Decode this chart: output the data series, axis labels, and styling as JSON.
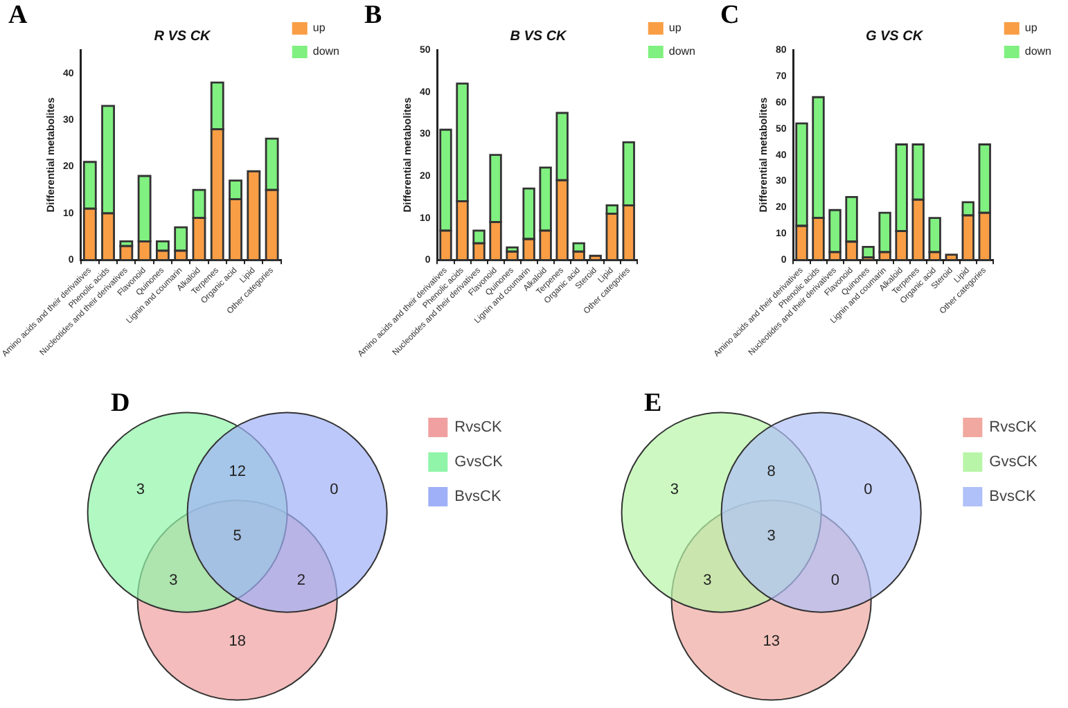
{
  "chart_data": [
    {
      "type": "bar",
      "title": "R VS CK",
      "ylabel": "Differential metabolites",
      "annotations": [
        "A"
      ],
      "stacked": true,
      "legend": "top right",
      "categories": [
        "Amino acids and their derivatives",
        "Phenolic acids",
        "Nucleotides and their derivatives",
        "Flavonoid",
        "Quinones",
        "Lignin and coumarin",
        "Alkaloid",
        "Terpenes",
        "Organic acid",
        "Lipid",
        "Other categories"
      ],
      "series": [
        {
          "name": "up",
          "color": "#fa9e45",
          "values": [
            11,
            10,
            3,
            4,
            2,
            2,
            9,
            28,
            13,
            19,
            15
          ]
        },
        {
          "name": "down",
          "color": "#80f080",
          "values": [
            10,
            23,
            1,
            14,
            2,
            5,
            6,
            10,
            4,
            0,
            11
          ]
        }
      ],
      "ylim": [
        0,
        45
      ],
      "yticks": [
        0,
        10,
        20,
        30,
        40
      ]
    },
    {
      "type": "bar",
      "title": "B VS CK",
      "ylabel": "Differential metabolites",
      "annotations": [
        "B"
      ],
      "stacked": true,
      "legend": "top right",
      "categories": [
        "Amino acids and their derivatives",
        "Phenolic acids",
        "Nucleotides and their derivatives",
        "Flavonoid",
        "Quinones",
        "Lignin and coumarin",
        "Alkaloid",
        "Terpenes",
        "Organic acid",
        "Steroid",
        "Lipid",
        "Other categories"
      ],
      "series": [
        {
          "name": "up",
          "color": "#fa9e45",
          "values": [
            7,
            14,
            4,
            9,
            2,
            5,
            7,
            19,
            2,
            1,
            11,
            13
          ]
        },
        {
          "name": "down",
          "color": "#80f080",
          "values": [
            24,
            28,
            3,
            16,
            1,
            12,
            15,
            16,
            2,
            0,
            2,
            15
          ]
        }
      ],
      "ylim": [
        0,
        50
      ],
      "yticks": [
        0,
        10,
        20,
        30,
        40,
        50
      ]
    },
    {
      "type": "bar",
      "title": "G VS CK",
      "ylabel": "Differential metabolites",
      "annotations": [
        "C"
      ],
      "stacked": true,
      "legend": "top right",
      "categories": [
        "Amino acids and their derivatives",
        "Phenolic acids",
        "Nucleotides and their derivatives",
        "Flavonoid",
        "Quinones",
        "Lignin and coumarin",
        "Alkaloid",
        "Terpenes",
        "Organic acid",
        "Steroid",
        "Lipid",
        "Other categories"
      ],
      "series": [
        {
          "name": "up",
          "color": "#fa9e45",
          "values": [
            13,
            16,
            3,
            7,
            1,
            3,
            11,
            23,
            3,
            2,
            17,
            18
          ]
        },
        {
          "name": "down",
          "color": "#80f080",
          "values": [
            39,
            46,
            16,
            17,
            4,
            15,
            33,
            21,
            13,
            0,
            5,
            26
          ]
        }
      ],
      "ylim": [
        0,
        80
      ],
      "yticks": [
        0,
        10,
        20,
        30,
        40,
        50,
        60,
        70,
        80
      ]
    },
    {
      "type": "other",
      "annotations": [
        "D",
        "3",
        "12",
        "0",
        "5",
        "3",
        "2",
        "18"
      ],
      "legend": "right",
      "series": [
        {
          "name": "RvsCK",
          "color": "#f0a0a0"
        },
        {
          "name": "GvsCK",
          "color": "#90f5a8"
        },
        {
          "name": "BvsCK",
          "color": "#a0b0f8"
        }
      ]
    },
    {
      "type": "other",
      "annotations": [
        "E",
        "3",
        "8",
        "0",
        "3",
        "3",
        "0",
        "13"
      ],
      "legend": "right",
      "series": [
        {
          "name": "RvsCK",
          "color": "#f0a8a0"
        },
        {
          "name": "GvsCK",
          "color": "#b8f5a8"
        },
        {
          "name": "BvsCK",
          "color": "#b0c0f8"
        }
      ]
    }
  ]
}
